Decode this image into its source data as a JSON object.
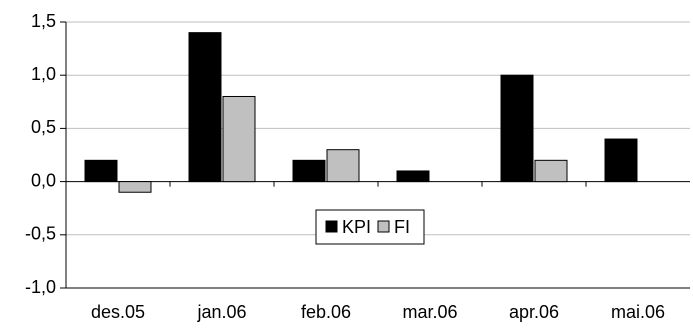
{
  "chart_data": {
    "type": "bar",
    "title": "",
    "xlabel": "",
    "ylabel": "",
    "categories": [
      "des.05",
      "jan.06",
      "feb.06",
      "mar.06",
      "apr.06",
      "mai.06"
    ],
    "series": [
      {
        "name": "KPI",
        "color": "#000000",
        "values": [
          0.2,
          1.4,
          0.2,
          0.1,
          1.0,
          0.4
        ]
      },
      {
        "name": "FI",
        "color": "#c0c0c0",
        "values": [
          -0.1,
          0.8,
          0.3,
          null,
          0.2,
          null
        ]
      }
    ],
    "ylim": [
      -1.0,
      1.5
    ],
    "yticks": [
      1.5,
      1.0,
      0.5,
      0.0,
      -0.5,
      -1.0
    ],
    "ytick_labels": [
      "1,5",
      "1,0",
      "0,5",
      "0,0",
      "-0,5",
      "-1,0"
    ],
    "grid": true,
    "legend": {
      "position": "center",
      "entries": [
        "KPI",
        "FI"
      ]
    }
  }
}
